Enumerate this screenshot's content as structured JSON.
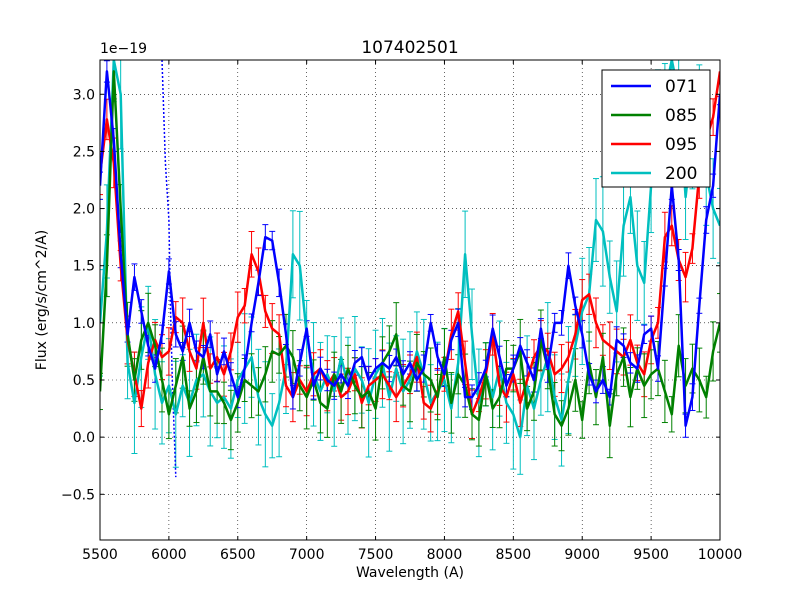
{
  "chart_data": {
    "type": "line",
    "title": "107402501",
    "xlabel": "Wavelength (A)",
    "ylabel": "Flux (erg/s/cm^2/A)",
    "y_offset_label": "1e−19",
    "xlim": [
      5500,
      10000
    ],
    "ylim": [
      -0.9,
      3.3
    ],
    "xticks": [
      5500,
      6000,
      6500,
      7000,
      7500,
      8000,
      8500,
      9000,
      9500,
      10000
    ],
    "xtick_labels": [
      "5500",
      "6000",
      "6500",
      "7000",
      "7500",
      "8000",
      "8500",
      "9000",
      "9500",
      "10000"
    ],
    "yticks": [
      -0.5,
      0.0,
      0.5,
      1.0,
      1.5,
      2.0,
      2.5,
      3.0
    ],
    "ytick_labels": [
      "−0.5",
      "0.0",
      "0.5",
      "1.0",
      "1.5",
      "2.0",
      "2.5",
      "3.0"
    ],
    "grid": true,
    "legend_position": "top-right",
    "x": [
      5500,
      5550,
      5600,
      5650,
      5700,
      5750,
      5800,
      5850,
      5900,
      5950,
      6000,
      6050,
      6100,
      6150,
      6200,
      6250,
      6300,
      6350,
      6400,
      6450,
      6500,
      6550,
      6600,
      6650,
      6700,
      6750,
      6800,
      6850,
      6900,
      6950,
      7000,
      7050,
      7100,
      7150,
      7200,
      7250,
      7300,
      7350,
      7400,
      7450,
      7500,
      7550,
      7600,
      7650,
      7700,
      7750,
      7800,
      7850,
      7900,
      7950,
      8000,
      8050,
      8100,
      8150,
      8200,
      8250,
      8300,
      8350,
      8400,
      8450,
      8500,
      8550,
      8600,
      8650,
      8700,
      8750,
      8800,
      8850,
      8900,
      8950,
      9000,
      9050,
      9100,
      9150,
      9200,
      9250,
      9300,
      9350,
      9400,
      9450,
      9500,
      9550,
      9600,
      9650,
      9700,
      9750,
      9800,
      9850,
      9900,
      9950,
      10000
    ],
    "series": [
      {
        "name": "071",
        "color": "#0000ff",
        "values": [
          2.2,
          3.2,
          2.6,
          1.6,
          0.9,
          1.4,
          1.1,
          0.8,
          0.6,
          0.9,
          1.45,
          0.9,
          0.75,
          1.0,
          0.75,
          0.7,
          0.9,
          0.55,
          0.75,
          0.55,
          0.35,
          0.6,
          1.0,
          1.35,
          1.75,
          1.72,
          1.35,
          0.9,
          0.35,
          0.65,
          0.95,
          0.45,
          0.6,
          0.5,
          0.45,
          0.55,
          0.45,
          0.65,
          0.7,
          0.5,
          0.6,
          0.65,
          0.6,
          0.7,
          0.55,
          0.65,
          0.5,
          0.6,
          1.0,
          0.7,
          0.55,
          0.85,
          1.0,
          0.35,
          0.35,
          0.45,
          0.6,
          0.95,
          0.7,
          0.45,
          0.6,
          0.8,
          0.65,
          0.5,
          0.95,
          0.6,
          1.0,
          1.0,
          1.5,
          1.15,
          0.9,
          0.55,
          0.4,
          0.5,
          0.35,
          0.85,
          0.8,
          0.65,
          0.6,
          0.9,
          0.95,
          0.6,
          1.4,
          2.2,
          1.55,
          0.1,
          0.35,
          1.15,
          1.9,
          2.2,
          3.0
        ]
      },
      {
        "name": "085",
        "color": "#008000",
        "values": [
          0.4,
          1.5,
          3.2,
          2.0,
          0.9,
          0.5,
          0.85,
          1.0,
          0.8,
          0.5,
          0.2,
          0.45,
          0.7,
          0.25,
          0.4,
          0.7,
          0.4,
          0.4,
          0.3,
          0.15,
          0.3,
          0.5,
          0.45,
          0.4,
          0.55,
          0.75,
          0.72,
          0.8,
          0.7,
          0.45,
          0.35,
          0.5,
          0.3,
          0.25,
          0.55,
          0.4,
          0.6,
          0.45,
          0.35,
          0.4,
          0.25,
          0.65,
          0.75,
          0.9,
          0.45,
          0.4,
          0.65,
          0.55,
          0.5,
          0.35,
          0.7,
          0.3,
          0.55,
          0.45,
          0.2,
          0.15,
          0.55,
          0.25,
          0.35,
          0.6,
          0.6,
          0.75,
          0.25,
          0.4,
          0.85,
          0.6,
          0.2,
          0.1,
          0.25,
          0.5,
          0.15,
          0.65,
          0.35,
          0.7,
          0.1,
          0.55,
          0.7,
          0.35,
          0.6,
          0.45,
          0.55,
          0.6,
          0.4,
          0.2,
          0.8,
          0.45,
          0.6,
          0.5,
          0.35,
          0.75,
          1.0
        ]
      },
      {
        "name": "095",
        "color": "#ff0000",
        "values": [
          2.3,
          2.78,
          2.4,
          1.5,
          0.85,
          0.55,
          0.25,
          0.65,
          0.85,
          0.7,
          0.75,
          1.05,
          1.0,
          0.75,
          0.6,
          1.0,
          0.6,
          0.7,
          0.55,
          0.75,
          1.05,
          1.15,
          1.6,
          1.45,
          1.1,
          0.95,
          0.9,
          0.45,
          0.35,
          0.5,
          0.4,
          0.55,
          0.6,
          0.45,
          0.55,
          0.35,
          0.4,
          0.55,
          0.3,
          0.45,
          0.5,
          0.55,
          0.45,
          0.35,
          0.45,
          0.55,
          0.7,
          0.3,
          0.25,
          0.4,
          0.55,
          0.9,
          1.1,
          0.65,
          0.2,
          0.35,
          0.55,
          0.9,
          0.45,
          0.35,
          0.55,
          0.3,
          0.5,
          0.7,
          0.8,
          0.75,
          0.55,
          0.6,
          0.7,
          0.9,
          1.2,
          1.25,
          1.0,
          0.85,
          0.8,
          0.75,
          0.7,
          0.85,
          0.65,
          0.55,
          0.85,
          1.0,
          1.75,
          1.85,
          1.55,
          1.4,
          1.65,
          2.3,
          2.6,
          2.8,
          3.2
        ]
      },
      {
        "name": "200",
        "color": "#00bfbf",
        "values": [
          1.0,
          1.8,
          3.3,
          3.0,
          0.65,
          0.3,
          0.7,
          1.0,
          0.55,
          0.3,
          0.45,
          0.2,
          0.45,
          0.3,
          0.5,
          0.55,
          0.4,
          0.3,
          0.35,
          0.25,
          0.5,
          0.6,
          0.7,
          0.35,
          0.2,
          0.1,
          0.3,
          0.6,
          1.6,
          1.5,
          0.9,
          0.55,
          0.4,
          0.55,
          0.4,
          0.7,
          0.45,
          0.6,
          0.5,
          0.3,
          0.55,
          0.65,
          0.35,
          0.6,
          0.4,
          0.5,
          0.75,
          0.55,
          0.3,
          0.4,
          0.5,
          0.25,
          0.65,
          1.6,
          0.9,
          0.3,
          0.55,
          0.35,
          0.6,
          0.3,
          0.2,
          0.0,
          0.45,
          0.25,
          0.5,
          0.7,
          0.35,
          0.15,
          0.5,
          0.8,
          1.1,
          1.25,
          1.9,
          1.8,
          1.4,
          1.1,
          1.85,
          2.1,
          1.5,
          1.35,
          2.2,
          2.75,
          3.0,
          3.3,
          3.0,
          2.1,
          2.65,
          2.95,
          2.3,
          2.0,
          1.85
        ]
      }
    ],
    "dotted_overlay": {
      "color": "#0000ff",
      "x": [
        5950,
        5975,
        6000,
        6010,
        6025,
        6050
      ],
      "values": [
        3.3,
        2.4,
        1.9,
        1.2,
        0.5,
        -0.35
      ]
    }
  }
}
